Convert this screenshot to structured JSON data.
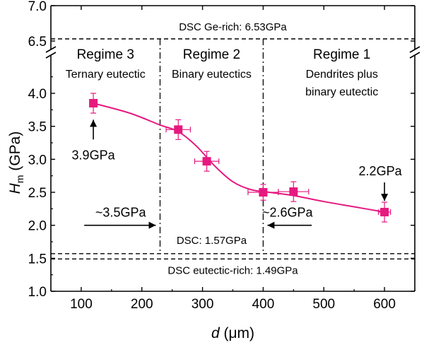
{
  "chart_data": {
    "type": "scatter",
    "xlabel": "d (μm)",
    "ylabel": "H_m (GPa)",
    "xlim": [
      50,
      650
    ],
    "ylim": [
      1.0,
      7.0
    ],
    "axis_break": [
      4.3,
      6.3
    ],
    "xticks": [
      100,
      200,
      300,
      400,
      500,
      600
    ],
    "yticks": [
      1.0,
      1.5,
      2.0,
      2.5,
      3.0,
      3.5,
      4.0,
      6.5,
      7.0
    ],
    "ytick_labels": [
      "1.0",
      "1.5",
      "2.0",
      "2.5",
      "3.0",
      "3.5",
      "4.0",
      "6.5",
      "7.0"
    ],
    "series": [
      {
        "name": "H_m",
        "color": "#e6197f",
        "x": [
          120,
          260,
          307,
          400,
          450,
          600
        ],
        "y": [
          3.85,
          3.45,
          2.97,
          2.5,
          2.51,
          2.2
        ],
        "xerr": [
          0,
          20,
          20,
          25,
          25,
          10
        ],
        "yerr": [
          0.15,
          0.15,
          0.15,
          0.12,
          0.15,
          0.15
        ]
      }
    ],
    "fit_curve": [
      [
        120,
        3.85
      ],
      [
        180,
        3.7
      ],
      [
        230,
        3.52
      ],
      [
        260,
        3.42
      ],
      [
        290,
        3.2
      ],
      [
        320,
        2.9
      ],
      [
        350,
        2.66
      ],
      [
        380,
        2.54
      ],
      [
        410,
        2.5
      ],
      [
        450,
        2.45
      ],
      [
        500,
        2.36
      ],
      [
        550,
        2.28
      ],
      [
        600,
        2.2
      ]
    ],
    "hlines": [
      {
        "y": 6.53,
        "label": "DSC Ge-rich: 6.53GPa"
      },
      {
        "y": 1.57,
        "label": "DSC: 1.57GPa"
      },
      {
        "y": 1.49,
        "label": "DSC eutectic-rich: 1.49GPa"
      }
    ],
    "regime_boundaries": [
      230,
      400
    ],
    "regimes": [
      {
        "title": "Regime 3",
        "subtitle": [
          "Ternary eutectic"
        ]
      },
      {
        "title": "Regime 2",
        "subtitle": [
          "Binary eutectics"
        ]
      },
      {
        "title": "Regime 1",
        "subtitle": [
          "Dendrites plus",
          "binary eutectic"
        ]
      }
    ],
    "annotations": [
      {
        "text": "3.9GPa",
        "x": 120,
        "y": 3.9
      },
      {
        "text": "~3.5GPa",
        "x": 230,
        "y": 2.0
      },
      {
        "text": "~2.6GPa",
        "x": 400,
        "y": 2.0
      },
      {
        "text": "2.2GPa",
        "x": 600,
        "y": 2.2
      }
    ]
  }
}
